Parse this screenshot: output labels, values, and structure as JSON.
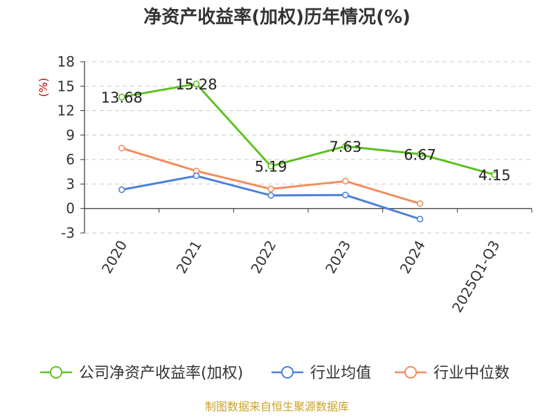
{
  "chart_data": {
    "type": "line",
    "title": "净资产收益率(加权)历年情况(%)",
    "ylabel": "(%)",
    "categories": [
      "2020",
      "2021",
      "2022",
      "2023",
      "2024",
      "2025Q1-Q3"
    ],
    "ylim": [
      -3,
      18
    ],
    "yticks": [
      18,
      15,
      12,
      9,
      6,
      3,
      0,
      -3
    ],
    "grid": true,
    "legend_position": "bottom",
    "series": [
      {
        "name": "公司净资产收益率(加权)",
        "color": "#5cc11f",
        "values": [
          13.68,
          15.28,
          5.19,
          7.63,
          6.67,
          4.15
        ],
        "labels": [
          "13.68",
          "15.28",
          "5.19",
          "7.63",
          "6.67",
          "4.15"
        ]
      },
      {
        "name": "行业均值",
        "color": "#4a80d9",
        "values": [
          2.3,
          4.0,
          1.6,
          1.65,
          -1.3,
          null
        ]
      },
      {
        "name": "行业中位数",
        "color": "#f48c5b",
        "values": [
          7.4,
          4.6,
          2.4,
          3.35,
          0.6,
          null
        ]
      }
    ]
  },
  "source": "制图数据来自恒生聚源数据库"
}
